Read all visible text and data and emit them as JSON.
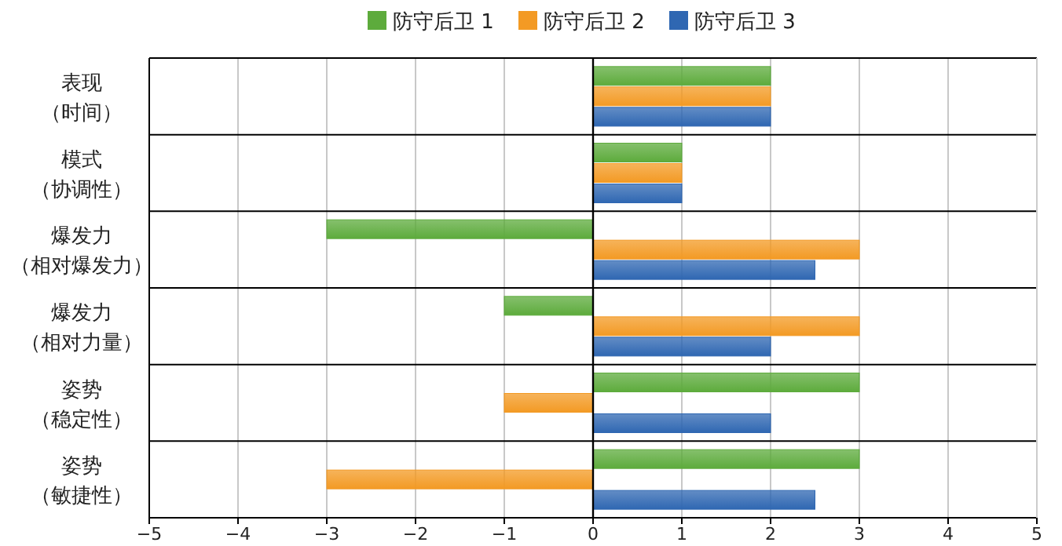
{
  "chart_data": {
    "type": "bar",
    "orientation": "horizontal",
    "categories": [
      "表现（时间）",
      "模式（协调性）",
      "爆发力（相对爆发力）",
      "爆发力（相对力量）",
      "姿势（稳定性）",
      "姿势（敏捷性）"
    ],
    "series": [
      {
        "name": "防守后卫 1",
        "color": "#5dab3c",
        "values": [
          2,
          1,
          -3,
          -1,
          3,
          3
        ]
      },
      {
        "name": "防守后卫 2",
        "color": "#f39a24",
        "values": [
          2,
          1,
          3,
          3,
          -1,
          -3
        ]
      },
      {
        "name": "防守后卫 3",
        "color": "#2f67b2",
        "values": [
          2,
          1,
          2.5,
          2,
          2,
          2.5
        ]
      }
    ],
    "xlim": [
      -5,
      5
    ],
    "xticks": [
      {
        "value": -5,
        "label": "−5"
      },
      {
        "value": -4,
        "label": "−4"
      },
      {
        "value": -3,
        "label": "−3"
      },
      {
        "value": -2,
        "label": "−2"
      },
      {
        "value": -1,
        "label": "−1"
      },
      0,
      1,
      2,
      3,
      4,
      5
    ],
    "grid": "x",
    "legend": "top"
  }
}
